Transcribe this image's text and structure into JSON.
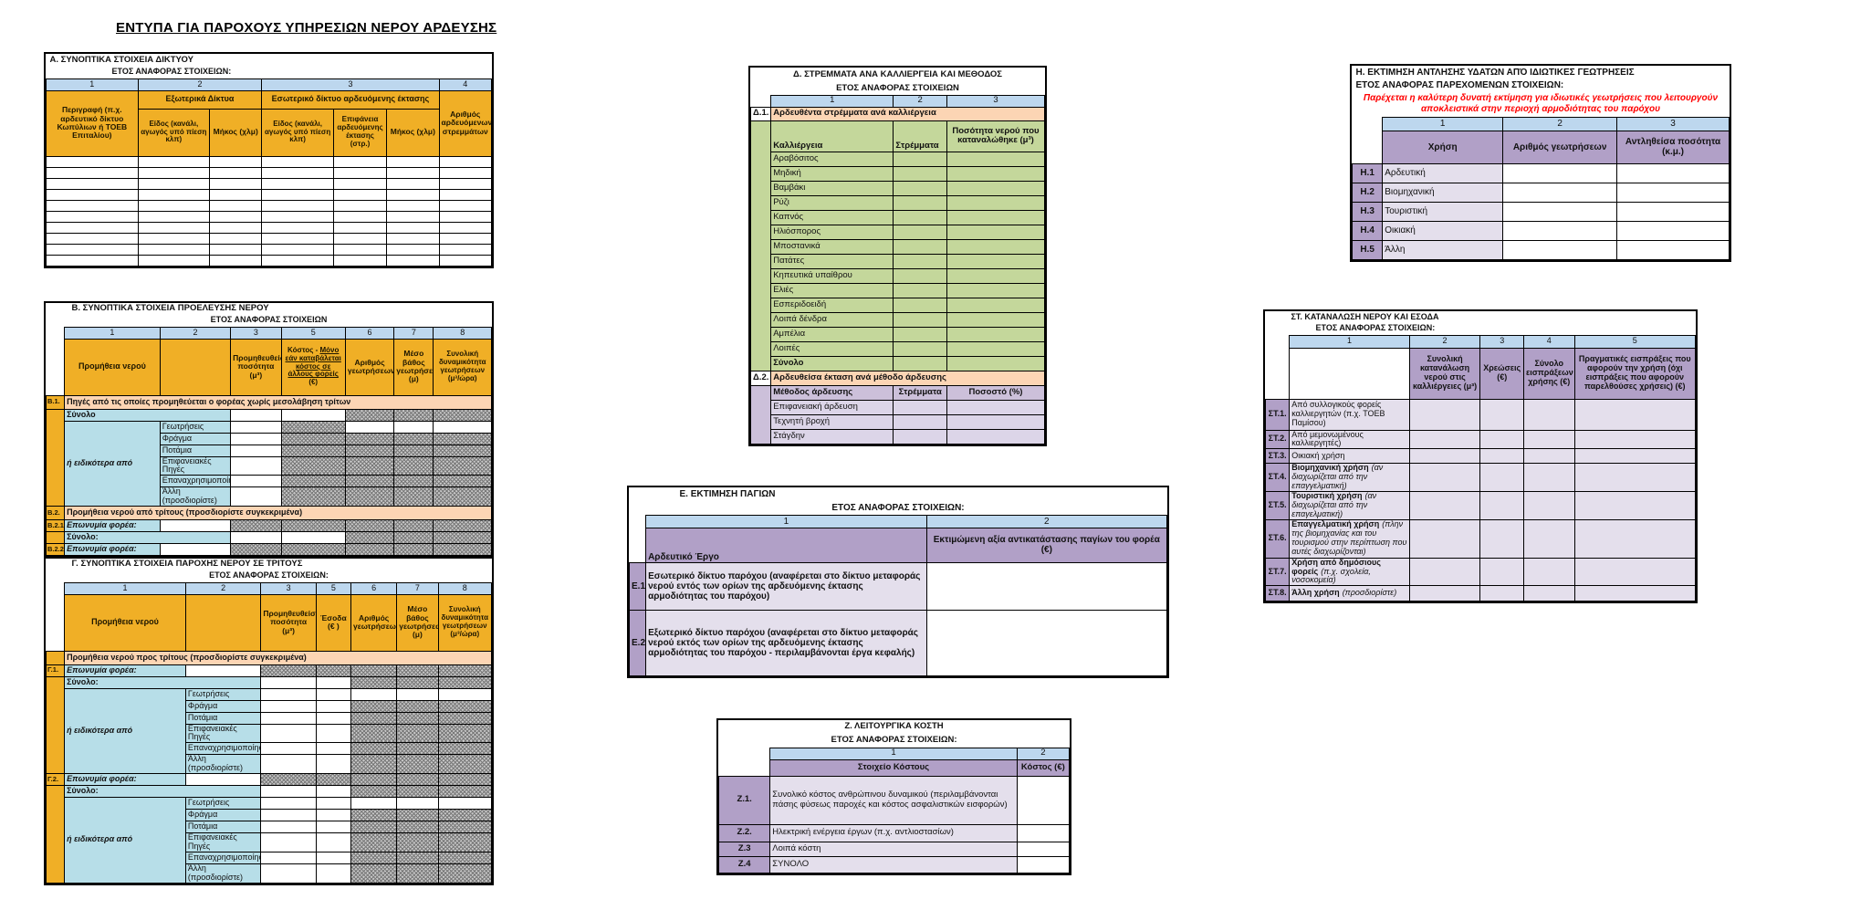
{
  "title": "ΕΝΤΥΠΑ ΓΙΑ ΠΑΡΟΧΟΥΣ ΥΠΗΡΕΣΙΩΝ ΝΕΡΟΥ ΑΡΔΕΥΣΗΣ",
  "colors": {
    "orange_header": "#F0AF26",
    "number_row_blue": "#BDD7EE",
    "section_peach": "#FCD5B4",
    "label_aqua": "#B7DEE8",
    "crop_green": "#C4D79B",
    "method_lavender": "#CCC0DA",
    "method_lavender_light": "#DCD5E8",
    "purple_header": "#B1A0C7",
    "purple_light": "#E4DFEC",
    "note_red": "#FF0000",
    "blocked_gray": "#C9C9C9"
  },
  "table_a": {
    "title": "Α. ΣΥΝΟΠΤΙΚΑ ΣΤΟΙΧΕΙΑ ΔΙΚΤΥΟΥ",
    "year_label": "ΕΤΟΣ ΑΝΑΦΟΡΑΣ ΣΤΟΙΧΕΙΩΝ:",
    "col_numbers": [
      "1",
      "2",
      "3",
      "4"
    ],
    "col1": "Περιγραφή (π.χ. αρδευτικό δίκτυο Κωπύλιων ή ΤΟΕΒ Επιταλίου)",
    "group2": "Εξωτερικά Δίκτυα",
    "group3": "Εσωτερικό δίκτυο αρδευόμενης έκτασης",
    "col2a": "Είδος (κανάλι, αγωγός υπό πίεση κλπ)",
    "col2b": "Μήκος (χλμ)",
    "col3a": "Είδος (κανάλι, αγωγός υπό πίεση κλπ)",
    "col3b": "Επιφάνεια αρδευόμενης έκτασης (στρ.)",
    "col3c": "Μήκος (χλμ)",
    "col4": "Αριθμός αρδευόμενων στρεμμάτων",
    "empty_rows": 10
  },
  "table_b": {
    "title": "Β. ΣΥΝΟΠΤΙΚΑ ΣΤΟΙΧΕΙΑ ΠΡΟΕΛΕΥΣΗΣ ΝΕΡΟΥ",
    "year_label": "ΕΤΟΣ ΑΝΑΦΟΡΑΣ ΣΤΟΙΧΕΙΩΝ",
    "col_numbers": [
      "1",
      "2",
      "3",
      "5",
      "6",
      "7",
      "8"
    ],
    "col1": "Προμήθεια νερού",
    "col3": "Προμηθευθείσα ποσότητα (μ³)",
    "col5_prefix": "Κόστος - ",
    "col5_underlined": "Μόνο εάν καταβάλεται κόστος σε άλλους φορείς",
    "col5_suffix": " (€)",
    "col6": "Αριθμός γεωτρήσεων",
    "col7": "Μέσο βάθος γεωτρήσεων (μ)",
    "col8": "Συνολική δυναμικότητα γεωτρήσεων (μ³/ώρα)",
    "s1_id": "Β.1.",
    "s1_label": "Πηγές από τις οποίες προμηθεύεται ο φορέας χωρίς μεσολάβηση τρίτων",
    "total_label": "Σύνολο",
    "detail_label": "ή ειδικότερα από",
    "sources": [
      "Γεωτρήσεις",
      "Φράγμα",
      "Ποτάμια",
      "Επιφανειακές Πηγές",
      "Επαναχρησιμοποίηση",
      "Άλλη (προσδιορίστε)"
    ],
    "s2_id": "Β.2.",
    "s2_label": "Προμήθεια νερού από τρίτους (προσδιορίστε συγκεκριμένα)",
    "s21_id": "Β.2.1",
    "s21_label": "Επωνυμία φορέα:",
    "total2_label": "Σύνολο:",
    "s22_id": "Β.2.2",
    "s22_label": "Επωνυμία φορέα:"
  },
  "table_c": {
    "title": "Γ. ΣΥΝΟΠΤΙΚΑ ΣΤΟΙΧΕΙΑ ΠΑΡΟΧΗΣ ΝΕΡΟΥ ΣΕ ΤΡΙΤΟΥΣ",
    "year_label": "ΕΤΟΣ ΑΝΑΦΟΡΑΣ ΣΤΟΙΧΕΙΩΝ:",
    "col_numbers": [
      "1",
      "2",
      "3",
      "5",
      "6",
      "7",
      "8"
    ],
    "col1": "Προμήθεια νερού",
    "col3": "Προμηθευθείσα ποσότητα (μ³)",
    "col5": "Έσοδα (€ )",
    "col6": "Αριθμός γεωτρήσεων",
    "col7": "Μέσο βάθος γεωτρήσεων (μ)",
    "col8": "Συνολική δυναμικότητα γεωτρήσεων (μ³/ώρα)",
    "s0_label": "Προμήθεια νερού προς τρίτους (προσδιορίστε συγκεκριμένα)",
    "s1_id": "Γ.1.",
    "s1_label": "Επωνυμία φορέα:",
    "total_label": "Σύνολο:",
    "detail_label": "ή ειδικότερα από",
    "sources": [
      "Γεωτρήσεις",
      "Φράγμα",
      "Ποτάμια",
      "Επιφανειακές Πηγές",
      "Επαναχρησιμοποίηση",
      "Άλλη (προσδιορίστε)"
    ],
    "s2_id": "Γ.2.",
    "s2_label": "Επωνυμία φορέα:"
  },
  "table_d": {
    "title": "Δ. ΣΤΡΕΜΜΑΤΑ ΑΝΑ ΚΑΛΛΙΕΡΓΕΙΑ ΚΑΙ ΜΕΘΟΔΟΣ",
    "year_label": "ΕΤΟΣ ΑΝΑΦΟΡΑΣ ΣΤΟΙΧΕΙΩΝ",
    "col_numbers": [
      "1",
      "2",
      "3"
    ],
    "d1_id": "Δ.1.",
    "d1_label": "Αρδευθέντα στρέμματα ανά καλλιέργεια",
    "d1_headers": [
      "Καλλιέργεια",
      "Στρέμματα",
      "Ποσότητα νερού που καταναλώθηκε (μ³)"
    ],
    "crops": [
      "Αραβόσιτος",
      "Μηδική",
      "Βαμβάκι",
      "Ρύζι",
      "Καπνός",
      "Ηλιόσπορος",
      "Μποστανικά",
      "Πατάτες",
      "Κηπευτικά υπαίθρου",
      "Ελιές",
      "Εσπεριδοειδή",
      "Λοιπά δένδρα",
      "Αμπέλια",
      "Λοιπές"
    ],
    "d1_total": "Σύνολο",
    "d2_id": "Δ.2.",
    "d2_label": "Αρδευθείσα έκταση ανά μέθοδο άρδευσης",
    "d2_headers": [
      "Μέθοδος άρδευσης",
      "Στρέμματα",
      "Ποσοστό (%)"
    ],
    "methods": [
      "Επιφανειακή άρδευση",
      "Τεχνητή βροχή",
      "Στάγδην"
    ]
  },
  "table_e": {
    "title": "Ε. ΕΚΤΙΜΗΣΗ ΠΑΓΙΩΝ",
    "year_label": "ΕΤΟΣ ΑΝΑΦΟΡΑΣ ΣΤΟΙΧΕΙΩΝ:",
    "col_numbers": [
      "1",
      "2"
    ],
    "col1": "Αρδευτικό Έργο",
    "col2": "Εκτιμώμενη αξία αντικατάστασης παγίων του φορέα (€)",
    "rows": [
      {
        "id": "Ε.1.",
        "label": "Εσωτερικό δίκτυο παρόχου (αναφέρεται στο δίκτυο μεταφοράς νερού εντός των ορίων της αρδευόμενης έκτασης αρμοδιότητας του παρόχου)"
      },
      {
        "id": "Ε.2.",
        "label": "Εξωτερικό δίκτυο παρόχου (αναφέρεται στο δίκτυο μεταφοράς νερού εκτός των ορίων της αρδευόμενης έκτασης αρμοδιότητας του παρόχου - περιλαμβάνονται έργα κεφαλής)"
      }
    ]
  },
  "table_z": {
    "title": "Ζ. ΛΕΙΤΟΥΡΓΙΚΑ ΚΟΣΤΗ",
    "year_label": "ΕΤΟΣ ΑΝΑΦΟΡΑΣ ΣΤΟΙΧΕΙΩΝ:",
    "col_numbers": [
      "1",
      "2"
    ],
    "col1": "Στοιχείο Κόστους",
    "col2": "Κόστος (€)",
    "rows": [
      {
        "id": "Ζ.1.",
        "label": "Συνολικό κόστος ανθρώπινου δυναμικού (περιλαμβάνονται πάσης φύσεως παροχές και κόστος ασφαλιστικών εισφορών)"
      },
      {
        "id": "Ζ.2.",
        "label": "Ηλεκτρική ενέργεια έργων (π.χ. αντλιοστασίων)"
      },
      {
        "id": "Ζ.3",
        "label": "Λοιπά κόστη"
      },
      {
        "id": "Ζ.4",
        "label": "ΣΥΝΟΛΟ"
      }
    ]
  },
  "table_h": {
    "title": "Η. ΕΚΤΙΜΗΣΗ ΑΝΤΛΗΣΗΣ ΥΔΑΤΩΝ ΑΠΌ ΙΔΙΩΤΙΚΕΣ ΓΕΩΤΡΗΣΕΙΣ",
    "year_label": "ΕΤΟΣ ΑΝΑΦΟΡΑΣ ΠΑΡΕΧΟΜΕΝΩΝ ΣΤΟΙΧΕΙΩΝ:",
    "note": "Παρέχεται η καλύτερη δυνατή εκτίμηση για ιδιωτικές γεωτρήσεις που λειτουργούν αποκλειστικά στην περιοχή αρμοδιότητας του παρόχου",
    "col_numbers": [
      "1",
      "2",
      "3"
    ],
    "col1": "Χρήση",
    "col2": "Αριθμός γεωτρήσεων",
    "col3": "Αντληθείσα ποσότητα (κ.μ.)",
    "rows": [
      {
        "id": "Η.1",
        "label": "Αρδευτική"
      },
      {
        "id": "Η.2",
        "label": "Βιομηχανική"
      },
      {
        "id": "Η.3",
        "label": "Τουριστική"
      },
      {
        "id": "Η.4",
        "label": "Οικιακή"
      },
      {
        "id": "Η.5",
        "label": "Άλλη"
      }
    ]
  },
  "table_st": {
    "title": "ΣΤ. ΚΑΤΑΝΑΛΩΣΗ ΝΕΡΟΥ ΚΑΙ ΕΣΟΔΑ",
    "year_label": "ΕΤΟΣ ΑΝΑΦΟΡΑΣ ΣΤΟΙΧΕΙΩΝ:",
    "col_numbers": [
      "1",
      "2",
      "3",
      "4",
      "5"
    ],
    "col2": "Συνολική κατανάλωση νερού στις καλλιέργειες (μ³)",
    "col3": "Χρεώσεις (€)",
    "col4": "Σύνολο εισπράξεων χρήσης (€)",
    "col5": "Πραγματικές εισπράξεις που αφορούν την χρήση (όχι εισπράξεις που αφορούν παρελθούσες χρήσεις) (€)",
    "rows": [
      {
        "id": "ΣΤ.1.",
        "label": "Από συλλογικούς φορείς καλλιεργητών (π.χ. ΤΟΕΒ Παμίσου)",
        "note": ""
      },
      {
        "id": "ΣΤ.2.",
        "label": "Από μεμονωμένους καλλιεργητές)",
        "note": ""
      },
      {
        "id": "ΣΤ.3.",
        "label": "Οικιακή χρήση",
        "note": ""
      },
      {
        "id": "ΣΤ.4.",
        "label": "Βιομηχανική χρήση",
        "note": "(αν διαχωρίζεται από την επαγγελματική)"
      },
      {
        "id": "ΣΤ.5.",
        "label": "Τουριστική χρήση",
        "note": "(αν διαχωρίζεται από την επαγελματική)"
      },
      {
        "id": "ΣΤ.6.",
        "label": "Επαγγελματική χρήση",
        "note": "(πλην της βιομηχανίας και του τουρισμού στην περίπτωση που αυτές διαχωρίζονται)"
      },
      {
        "id": "ΣΤ.7.",
        "label": "Χρήση από δημόσιους φορείς",
        "note": "(π.χ. σχολεία, νοσοκομεία)"
      },
      {
        "id": "ΣΤ.8.",
        "label": "Άλλη χρήση",
        "note": "(προσδιορίστε)"
      }
    ]
  }
}
